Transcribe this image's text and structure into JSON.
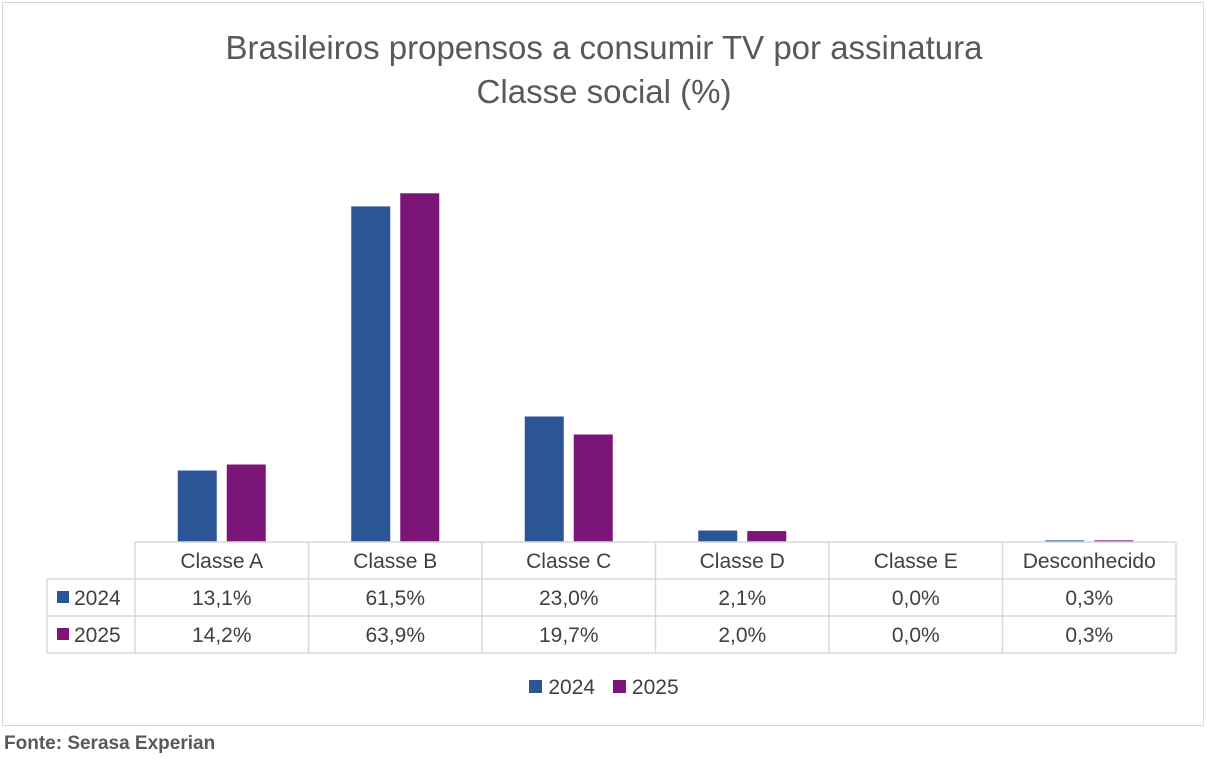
{
  "chart_data": {
    "type": "bar",
    "title": "Brasileiros propensos a consumir TV por assinatura",
    "subtitle": "Classe social (%)",
    "categories": [
      "Classe A",
      "Classe B",
      "Classe C",
      "Classe D",
      "Classe E",
      "Desconhecido"
    ],
    "series": [
      {
        "name": "2024",
        "color": "#2b5597",
        "values": [
          13.1,
          61.5,
          23.0,
          2.1,
          0.0,
          0.3
        ],
        "labels": [
          "13,1%",
          "61,5%",
          "23,0%",
          "2,1%",
          "0,0%",
          "0,3%"
        ]
      },
      {
        "name": "2025",
        "color": "#7b1578",
        "values": [
          14.2,
          63.9,
          19.7,
          2.0,
          0.0,
          0.3
        ],
        "labels": [
          "14,2%",
          "63,9%",
          "19,7%",
          "2,0%",
          "0,0%",
          "0,3%"
        ]
      }
    ],
    "ylim": [
      0,
      70
    ],
    "legend": "bottom",
    "data_table": true
  },
  "source": "Fonte: Serasa Experian"
}
